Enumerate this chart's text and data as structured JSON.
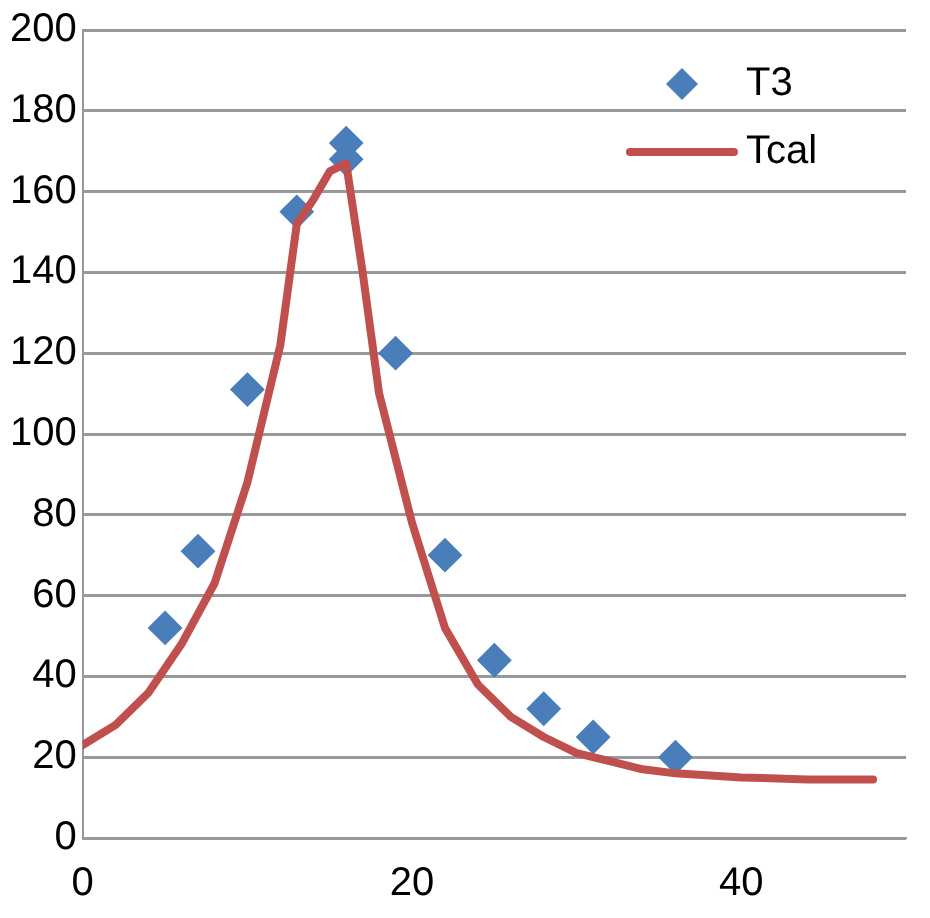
{
  "chart_data": {
    "type": "scatter",
    "xlim": [
      0,
      50
    ],
    "xticks": [
      0,
      20,
      40
    ],
    "ylim": [
      0,
      200
    ],
    "yticks": [
      0,
      20,
      40,
      60,
      80,
      100,
      120,
      140,
      160,
      180,
      200
    ],
    "grid": "y",
    "legend": "top right",
    "series": [
      {
        "name": "T3",
        "marker": "diamond",
        "color": "#4a7ebb",
        "x": [
          5,
          7,
          10,
          13,
          16,
          16,
          19,
          22,
          25,
          28,
          31,
          36
        ],
        "values": [
          52,
          71,
          111,
          155,
          172,
          168,
          120,
          70,
          44,
          32,
          25,
          20
        ]
      },
      {
        "name": "Tcal",
        "type": "line",
        "marker": "none",
        "color": "#c0504d",
        "x": [
          0,
          2,
          4,
          6,
          8,
          10,
          12,
          13,
          14,
          15,
          16,
          17,
          18,
          20,
          22,
          24,
          26,
          28,
          30,
          32,
          34,
          36,
          40,
          44,
          48
        ],
        "values": [
          23,
          28,
          36,
          48,
          63,
          88,
          122,
          152,
          158,
          165,
          167,
          140,
          110,
          78,
          52,
          38,
          30,
          25,
          21,
          19,
          17,
          16,
          15,
          14.5,
          14.5
        ]
      }
    ]
  }
}
